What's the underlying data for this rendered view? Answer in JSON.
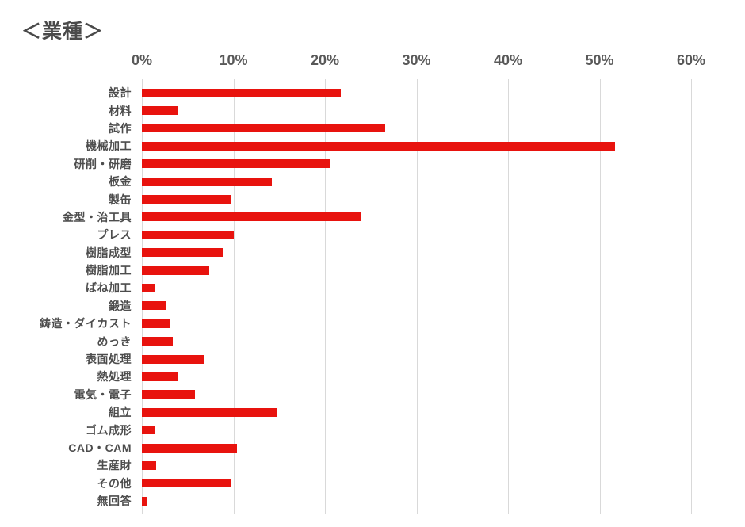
{
  "title": "＜業種＞",
  "chart_data": {
    "type": "bar",
    "orientation": "horizontal",
    "title": "＜業種＞",
    "unit": "%",
    "categories": [
      "設計",
      "材料",
      "試作",
      "機械加工",
      "研削・研磨",
      "板金",
      "製缶",
      "金型・治工具",
      "プレス",
      "樹脂成型",
      "樹脂加工",
      "ばね加工",
      "鍛造",
      "鋳造・ダイカスト",
      "めっき",
      "表面処理",
      "熱処理",
      "電気・電子",
      "組立",
      "ゴム成形",
      "CAD・CAM",
      "生産財",
      "その他",
      "無回答"
    ],
    "values": [
      21.7,
      4.0,
      26.6,
      51.7,
      20.6,
      14.2,
      9.8,
      24.0,
      10.0,
      8.9,
      7.4,
      1.5,
      2.6,
      3.0,
      3.4,
      6.8,
      4.0,
      5.8,
      14.8,
      1.5,
      10.4,
      1.6,
      9.8,
      0.6
    ],
    "x_ticks": [
      "0%",
      "10%",
      "20%",
      "30%",
      "40%",
      "50%",
      "60%"
    ],
    "x_tick_values": [
      0,
      10,
      20,
      30,
      40,
      50,
      60
    ],
    "xlim": [
      0,
      65.5
    ],
    "grid": "vertical",
    "legend": "none",
    "bar_color": "#e8130e",
    "title_color": "#4a4a4a",
    "category_label_color": "#4d4d4d",
    "tick_label_color": "#595959",
    "gridline_color": "#d9d9d9"
  }
}
